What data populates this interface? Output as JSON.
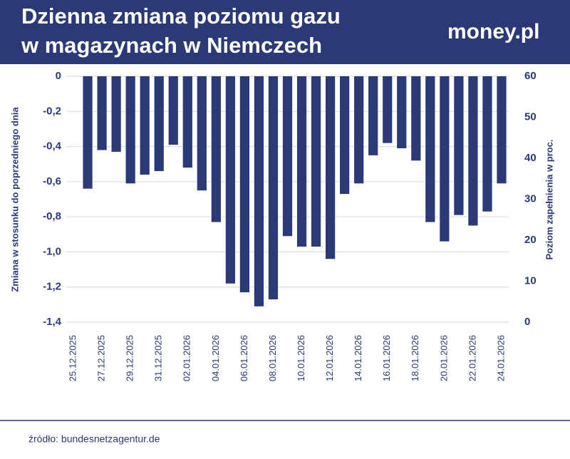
{
  "chart_data": {
    "type": "bar",
    "title": [
      "Dzienna zmiana poziomu gazu",
      "w magazynach w Niemczech"
    ],
    "logo": "money.pl",
    "source": "źródło: bundesnetzagentur.de",
    "ylabel": "Zmiana w stosunku do poprzedniego dnia",
    "y2label": "Poziom zapełnienia w proc.",
    "categories": [
      "25.12.2025",
      null,
      "27.12.2025",
      null,
      "29.12.2025",
      null,
      "31.12.2025",
      null,
      "02.01.2026",
      null,
      "04.01.2026",
      null,
      "06.01.2026",
      null,
      "08.01.2026",
      null,
      "10.01.2026",
      null,
      "12.01.2026",
      null,
      "14.01.2026",
      null,
      "16.01.2026",
      null,
      "18.01.2026",
      null,
      "20.01.2026",
      null,
      "22.01.2026",
      null,
      "24.01.2026"
    ],
    "values": [
      null,
      -0.64,
      -0.42,
      -0.43,
      -0.61,
      -0.56,
      -0.54,
      -0.39,
      -0.52,
      -0.65,
      -0.83,
      -1.18,
      -1.23,
      -1.31,
      -1.27,
      -0.91,
      -0.97,
      -0.97,
      -1.04,
      -0.67,
      -0.61,
      -0.45,
      -0.38,
      -0.41,
      -0.48,
      -0.83,
      -0.94,
      -0.79,
      -0.85,
      -0.77,
      -0.61
    ],
    "color": "#2b3a76",
    "ylim": [
      -1.4,
      0
    ],
    "yticks": [
      0,
      {
        "value": -0.2,
        "label": "-0,2"
      },
      {
        "value": -0.4,
        "label": "-0,4"
      },
      {
        "value": -0.6,
        "label": "-0,6"
      },
      {
        "value": -0.8,
        "label": "-0,8"
      },
      {
        "value": -1.0,
        "label": "-1,0"
      },
      {
        "value": -1.2,
        "label": "-1,2"
      },
      {
        "value": -1.4,
        "label": "-1,4"
      }
    ],
    "y2lim": [
      0,
      60
    ],
    "y2ticks": [
      0,
      10,
      20,
      30,
      40,
      50,
      60
    ],
    "grid": true
  }
}
